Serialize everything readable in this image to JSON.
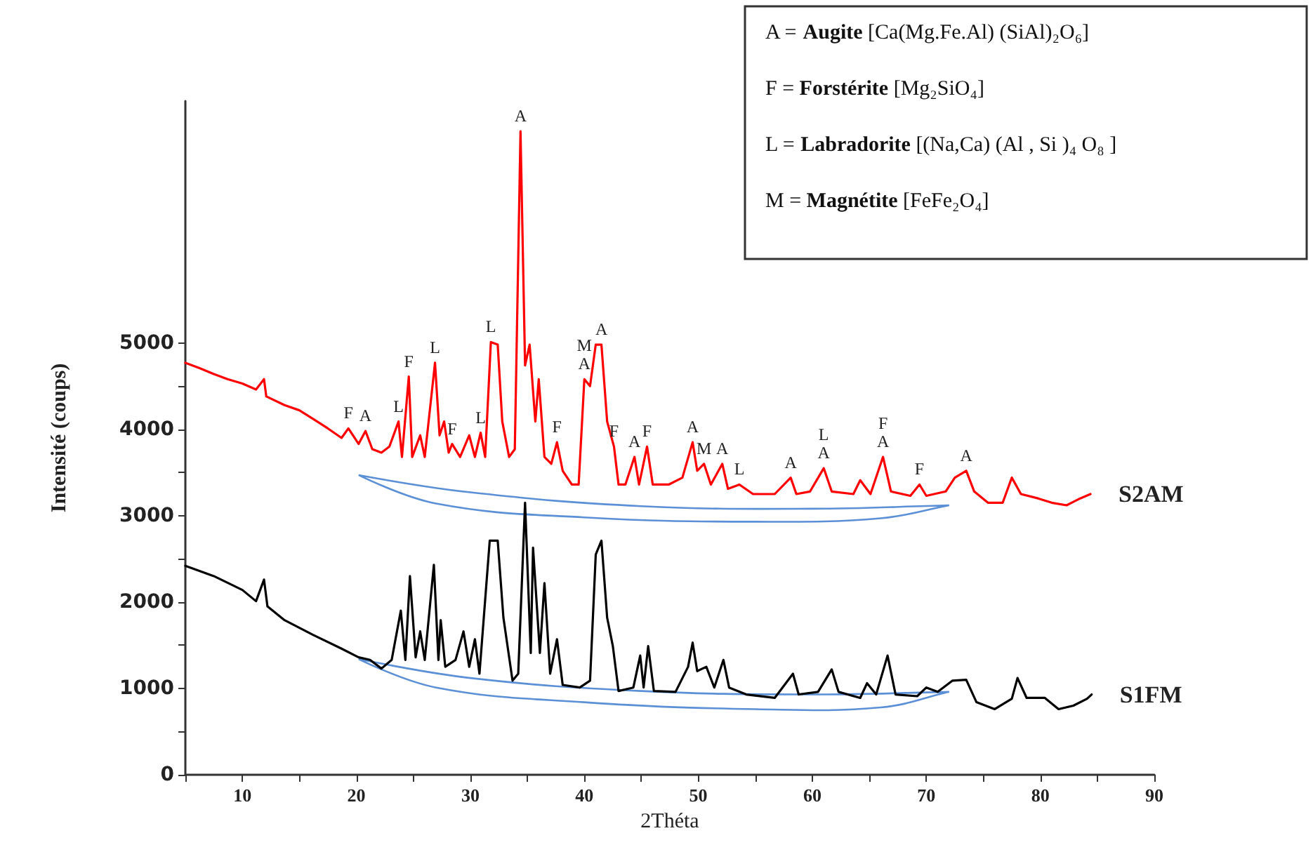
{
  "chart_data": {
    "type": "line",
    "xlabel": "2Théta",
    "ylabel": "Intensité (coups)",
    "xlim": [
      5,
      90
    ],
    "ylim": [
      0,
      7800
    ],
    "xticks": [
      {
        "value": 5,
        "label": null
      },
      10,
      {
        "value": 15,
        "label": null
      },
      20,
      {
        "value": 25,
        "label": null
      },
      30,
      {
        "value": 35,
        "label": null
      },
      40,
      {
        "value": 45,
        "label": null
      },
      50,
      {
        "value": 55,
        "label": null
      },
      60,
      {
        "value": 65,
        "label": null
      },
      70,
      {
        "value": 75,
        "label": null
      },
      80,
      {
        "value": 85,
        "label": null
      },
      90
    ],
    "yticks": [
      0,
      {
        "value": 500,
        "label": null
      },
      1000,
      {
        "value": 1500,
        "label": null
      },
      2000,
      {
        "value": 2500,
        "label": null
      },
      3000,
      {
        "value": 3500,
        "label": null
      },
      4000,
      {
        "value": 4500,
        "label": null
      },
      5000
    ],
    "grid": false,
    "legend": false,
    "marker": "none",
    "series": [
      {
        "name": "S2AM",
        "color": "#ff0000",
        "x": [
          5.0,
          6.2,
          7.5,
          8.7,
          10.0,
          11.2,
          11.9,
          12.1,
          13.7,
          15.0,
          16.2,
          17.5,
          18.7,
          19.3,
          20.2,
          20.8,
          21.4,
          22.2,
          22.9,
          23.7,
          24.0,
          24.6,
          24.9,
          25.6,
          26.0,
          26.9,
          27.3,
          27.7,
          28.1,
          28.4,
          29.1,
          29.9,
          30.4,
          30.9,
          31.3,
          31.8,
          32.4,
          32.8,
          33.4,
          33.9,
          34.4,
          34.8,
          35.2,
          35.7,
          36.0,
          36.5,
          37.1,
          37.6,
          38.1,
          38.9,
          39.5,
          40.0,
          40.5,
          41.0,
          41.5,
          42.0,
          42.6,
          43.0,
          43.6,
          44.4,
          44.8,
          45.5,
          46.0,
          47.4,
          48.6,
          49.5,
          49.9,
          50.5,
          51.1,
          52.1,
          52.6,
          53.6,
          54.8,
          56.7,
          58.1,
          58.6,
          59.8,
          61.0,
          61.7,
          63.6,
          64.2,
          65.1,
          66.2,
          66.9,
          68.6,
          69.4,
          70.0,
          71.7,
          72.5,
          73.5,
          74.2,
          75.4,
          76.7,
          77.5,
          78.3,
          79.8,
          81.0,
          82.3,
          83.5,
          84.4
        ],
        "values": [
          4770,
          4710,
          4640,
          4580,
          4530,
          4460,
          4580,
          4380,
          4280,
          4220,
          4120,
          4010,
          3900,
          4010,
          3830,
          3980,
          3770,
          3730,
          3800,
          4090,
          3680,
          4610,
          3680,
          3930,
          3680,
          4770,
          3930,
          4090,
          3730,
          3830,
          3680,
          3930,
          3680,
          3960,
          3680,
          5010,
          4980,
          4090,
          3680,
          3770,
          7450,
          4740,
          4980,
          4090,
          4580,
          3680,
          3600,
          3850,
          3520,
          3360,
          3360,
          4580,
          4500,
          4980,
          4980,
          4090,
          3800,
          3360,
          3360,
          3680,
          3360,
          3800,
          3360,
          3360,
          3440,
          3850,
          3520,
          3600,
          3360,
          3600,
          3310,
          3360,
          3250,
          3250,
          3440,
          3250,
          3280,
          3550,
          3280,
          3250,
          3410,
          3250,
          3680,
          3280,
          3230,
          3360,
          3230,
          3280,
          3440,
          3520,
          3280,
          3150,
          3150,
          3440,
          3250,
          3200,
          3150,
          3120,
          3200,
          3250
        ]
      },
      {
        "name": "S1FM",
        "color": "#000000",
        "x": [
          5.0,
          7.5,
          10.0,
          11.2,
          11.9,
          12.2,
          13.7,
          16.2,
          18.7,
          20.2,
          21.2,
          22.2,
          23.1,
          23.9,
          24.3,
          24.7,
          25.2,
          25.6,
          26.0,
          26.8,
          27.2,
          27.4,
          27.8,
          28.7,
          29.4,
          29.9,
          30.4,
          30.8,
          31.7,
          32.4,
          32.9,
          33.7,
          34.2,
          34.8,
          35.3,
          35.5,
          36.1,
          36.5,
          37.0,
          37.6,
          38.1,
          39.6,
          40.5,
          41.0,
          41.5,
          42.0,
          42.5,
          43.0,
          44.3,
          44.9,
          45.2,
          45.6,
          46.1,
          48.0,
          49.1,
          49.5,
          49.9,
          50.7,
          51.4,
          52.2,
          52.7,
          54.2,
          56.7,
          58.3,
          58.8,
          60.5,
          61.7,
          62.3,
          64.2,
          64.8,
          65.6,
          66.6,
          67.3,
          69.2,
          70.0,
          71.0,
          72.3,
          73.5,
          74.4,
          76.0,
          77.5,
          78.0,
          78.8,
          80.4,
          81.6,
          82.9,
          84.1,
          84.5
        ],
        "values": [
          2420,
          2300,
          2140,
          2010,
          2260,
          1950,
          1790,
          1620,
          1460,
          1360,
          1330,
          1230,
          1330,
          1900,
          1330,
          2300,
          1360,
          1660,
          1330,
          2430,
          1330,
          1790,
          1250,
          1330,
          1660,
          1250,
          1570,
          1170,
          2710,
          2710,
          1820,
          1090,
          1170,
          3150,
          1410,
          2630,
          1410,
          2220,
          1170,
          1570,
          1040,
          1010,
          1090,
          2550,
          2710,
          1820,
          1490,
          970,
          1010,
          1380,
          1010,
          1490,
          970,
          960,
          1250,
          1530,
          1200,
          1250,
          1010,
          1330,
          1010,
          930,
          890,
          1170,
          930,
          960,
          1220,
          960,
          890,
          1060,
          930,
          1380,
          930,
          910,
          1010,
          960,
          1090,
          1100,
          840,
          760,
          880,
          1120,
          890,
          890,
          760,
          800,
          880,
          930
        ]
      }
    ],
    "annotations": [
      "A = Augite [Ca(Mg.Fe.Al) (SiAl)₂O₆]",
      "F = Forstérite [Mg₂SiO₄]",
      "L = Labradorite [(Na,Ca) (Al , Si )₄ O₈ ]",
      "M = Magnétite [FeFe₂O₄]",
      {
        "text": "F",
        "x": 19.3,
        "y": 4010
      },
      {
        "text": "A",
        "x": 20.8,
        "y": 3980
      },
      {
        "text": "L",
        "x": 23.7,
        "y": 4090
      },
      {
        "text": "F",
        "x": 24.6,
        "y": 4610
      },
      {
        "text": "L",
        "x": 26.9,
        "y": 4770
      },
      {
        "text": "F",
        "x": 28.4,
        "y": 3830
      },
      {
        "text": "L",
        "x": 30.9,
        "y": 3960
      },
      {
        "text": "L",
        "x": 31.8,
        "y": 5010
      },
      {
        "text": "A",
        "x": 34.4,
        "y": 7450
      },
      {
        "text": "F",
        "x": 37.6,
        "y": 3850
      },
      {
        "text": "M",
        "x": 40.0,
        "y": 4580
      },
      {
        "text": "A",
        "x": 40.0,
        "y": 4580
      },
      {
        "text": "A",
        "x": 41.5,
        "y": 4980
      },
      {
        "text": "F",
        "x": 42.6,
        "y": 3800
      },
      {
        "text": "A",
        "x": 44.4,
        "y": 3680
      },
      {
        "text": "F",
        "x": 45.5,
        "y": 3800
      },
      {
        "text": "A",
        "x": 49.5,
        "y": 3850
      },
      {
        "text": "M",
        "x": 50.5,
        "y": 3600
      },
      {
        "text": "A",
        "x": 52.1,
        "y": 3600
      },
      {
        "text": "L",
        "x": 53.6,
        "y": 3360
      },
      {
        "text": "A",
        "x": 58.1,
        "y": 3440
      },
      {
        "text": "L",
        "x": 61.0,
        "y": 3550
      },
      {
        "text": "A",
        "x": 61.0,
        "y": 3550
      },
      {
        "text": "F",
        "x": 66.2,
        "y": 3680
      },
      {
        "text": "A",
        "x": 66.2,
        "y": 3680
      },
      {
        "text": "F",
        "x": 69.4,
        "y": 3360
      },
      {
        "text": "A",
        "x": 73.5,
        "y": 3520
      }
    ]
  }
}
